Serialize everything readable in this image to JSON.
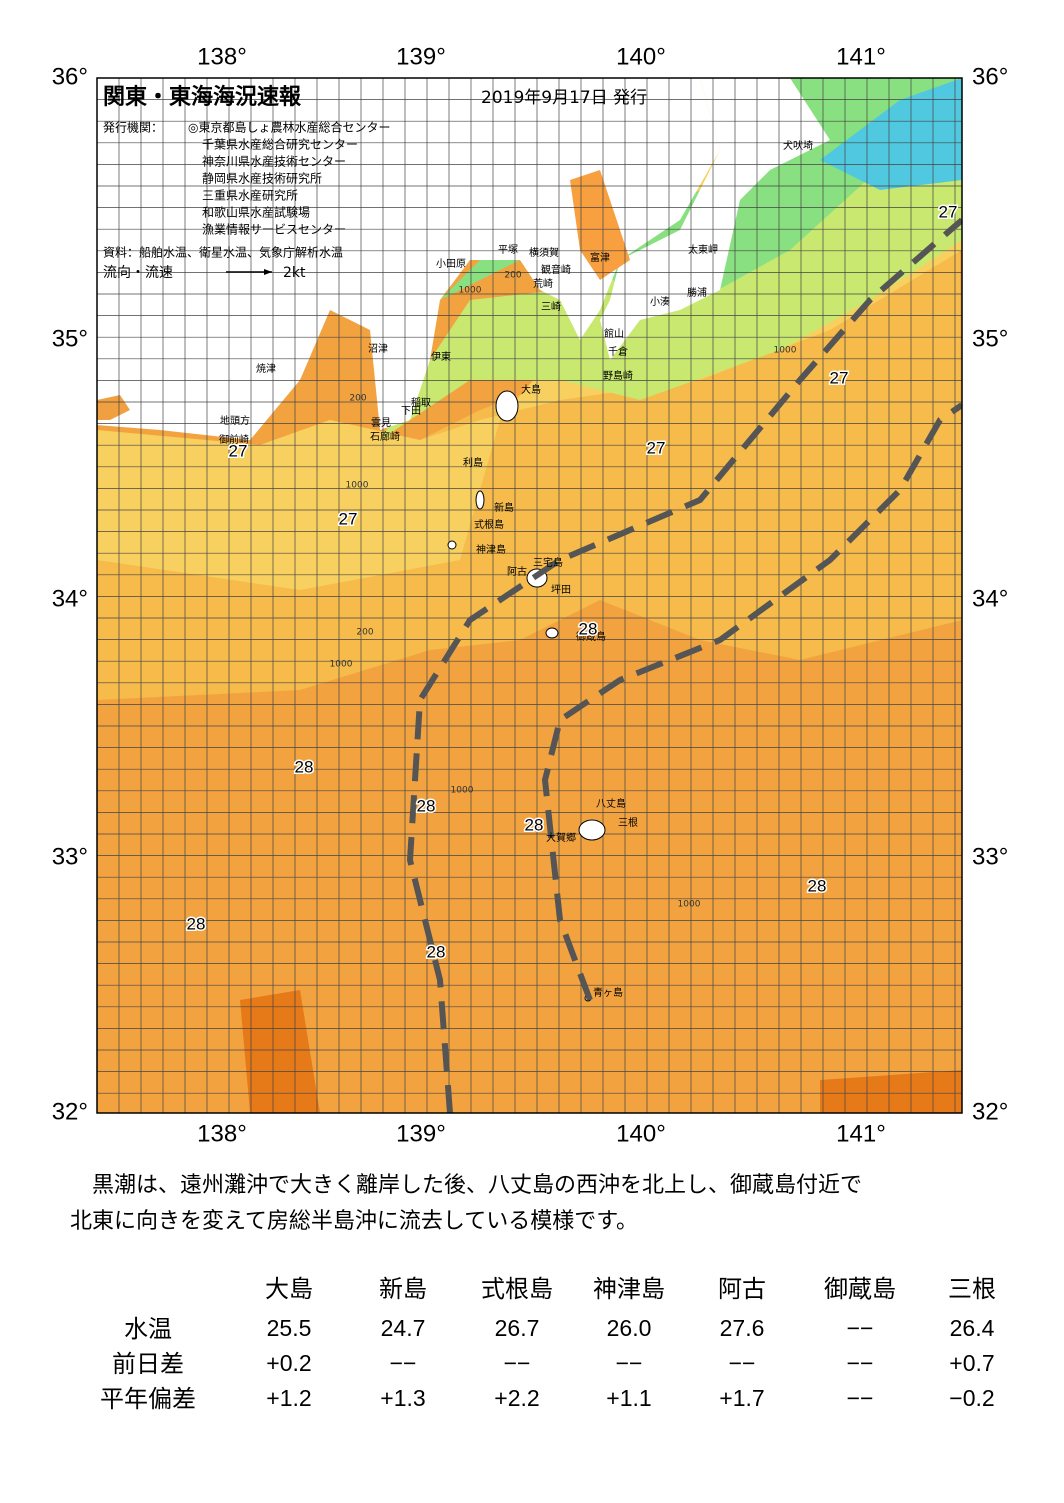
{
  "header": {
    "title": "関東・東海海況速報",
    "date": "2019年9月17日 発行",
    "issuer_label": "発行機関：",
    "issuers": [
      "◎東京都島しょ農林水産総合センター",
      "千葉県水産総合研究センター",
      "神奈川県水産技術センター",
      "静岡県水産技術研究所",
      "三重県水産研究所",
      "和歌山県水産試験場",
      "漁業情報サービスセンター"
    ],
    "source": "資料：船舶水温、衛星水温、気象庁解析水温",
    "flow_label": "流向・流速",
    "flow_scale": "2kt"
  },
  "axes": {
    "lon_top": [
      "138°",
      "139°",
      "140°",
      "141°"
    ],
    "lon_bottom": [
      "138°",
      "139°",
      "140°",
      "141°"
    ],
    "lat_left": [
      "36°",
      "35°",
      "34°",
      "33°",
      "32°"
    ],
    "lat_right": [
      "36°",
      "35°",
      "34°",
      "33°",
      "32°"
    ]
  },
  "places": [
    "小田原",
    "平塚",
    "横須賀",
    "富津",
    "観音崎",
    "荒崎",
    "三崎",
    "館山",
    "千倉",
    "野島崎",
    "小湊",
    "勝浦",
    "太東岬",
    "犬吠埼",
    "大島",
    "稲取",
    "下田",
    "雲見",
    "石廊崎",
    "伊東",
    "沼津",
    "焼津",
    "地頭方",
    "御前崎",
    "利島",
    "新島",
    "式根島",
    "神津島",
    "三宅島",
    "阿古",
    "坪田",
    "御蔵島",
    "八丈島",
    "三根",
    "大賀郷",
    "青ヶ島"
  ],
  "temperatures": [
    "27",
    "27",
    "27",
    "27",
    "27",
    "28",
    "28",
    "28",
    "28",
    "28",
    "28",
    "28"
  ],
  "contours": [
    "200",
    "1000",
    "200",
    "1000",
    "1000",
    "200",
    "1000",
    "1000",
    "1000"
  ],
  "text": [
    "黒潮は、遠州灘沖で大きく離岸した後、八丈島の西沖を北上し、御蔵島付近で",
    "北東に向きを変えて房総半島沖に流去している模様です。"
  ],
  "table": {
    "columns": [
      "大島",
      "新島",
      "式根島",
      "神津島",
      "阿古",
      "御蔵島",
      "三根"
    ],
    "rows": [
      {
        "label": "水温",
        "cells": [
          "25.5",
          "24.7",
          "26.7",
          "26.0",
          "27.6",
          "−−",
          "26.4"
        ]
      },
      {
        "label": "前日差",
        "cells": [
          "+0.2",
          "−−",
          "−−",
          "−−",
          "−−",
          "−−",
          "+0.7"
        ]
      },
      {
        "label": "平年偏差",
        "cells": [
          "+1.2",
          "+1.3",
          "+2.2",
          "+1.1",
          "+1.7",
          "−−",
          "−0.2"
        ]
      }
    ]
  }
}
